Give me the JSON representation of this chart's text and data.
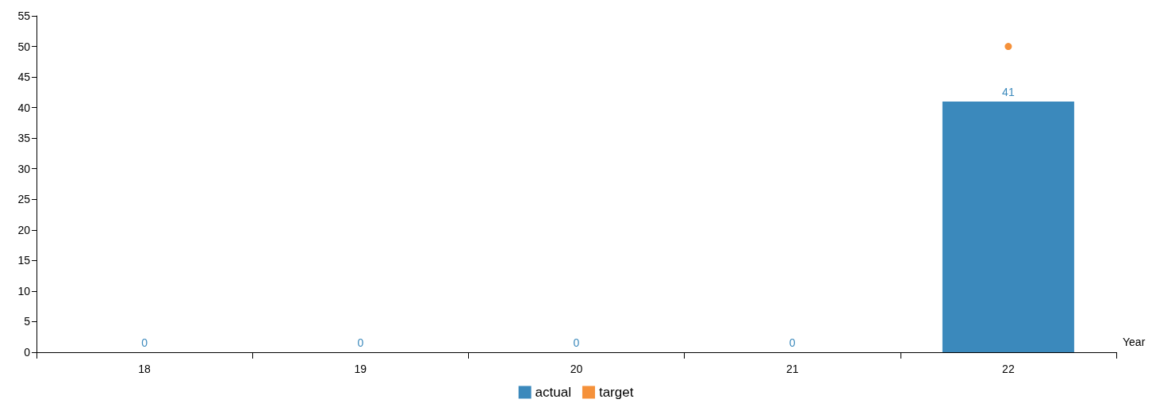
{
  "chart_data": {
    "type": "bar",
    "xlabel": "Year",
    "categories": [
      "18",
      "19",
      "20",
      "21",
      "22"
    ],
    "series": [
      {
        "name": "actual",
        "color": "#3b89bc",
        "values": [
          0,
          0,
          0,
          0,
          41
        ],
        "value_labels": [
          "0",
          "0",
          "0",
          "0",
          "41"
        ]
      },
      {
        "name": "target",
        "type": "scatter",
        "color": "#f5913a",
        "values": [
          null,
          null,
          null,
          null,
          50
        ]
      }
    ],
    "ylim": [
      0,
      55
    ],
    "yticks": [
      0,
      5,
      10,
      15,
      20,
      25,
      30,
      35,
      40,
      45,
      50,
      55
    ],
    "grid": false,
    "legend": "bottom",
    "marker": "circle"
  }
}
